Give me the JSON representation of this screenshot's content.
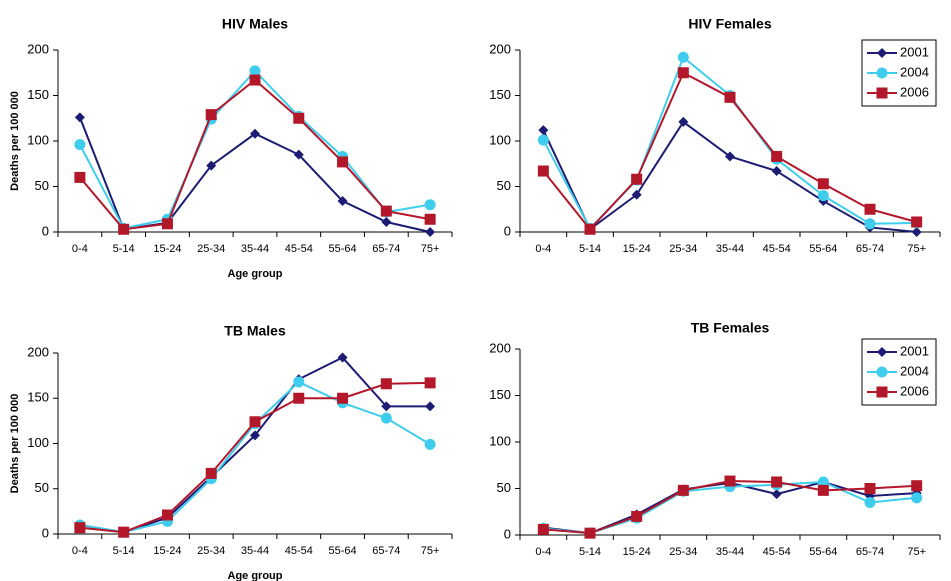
{
  "chart_data": [
    {
      "type": "line",
      "title": "HIV Males",
      "x_label": "Age group",
      "y_label": "Deaths per 100 000",
      "categories": [
        "0-4",
        "5-14",
        "15-24",
        "25-34",
        "35-44",
        "45-54",
        "55-64",
        "65-74",
        "75+"
      ],
      "ylim": [
        0,
        200
      ],
      "yticks": [
        0,
        50,
        100,
        150,
        200
      ],
      "series": [
        {
          "color": "#1c1c74",
          "marker": "diamond",
          "values": [
            126,
            3,
            10,
            73,
            108,
            85,
            34,
            11,
            0
          ]
        },
        {
          "color": "#3fcdee",
          "marker": "circle",
          "values": [
            96,
            4,
            14,
            124,
            177,
            127,
            83,
            22,
            30
          ]
        },
        {
          "color": "#b3172a",
          "marker": "square",
          "values": [
            60,
            3,
            9,
            129,
            167,
            125,
            77,
            23,
            14
          ]
        }
      ]
    },
    {
      "type": "line",
      "title": "HIV Females",
      "legend": "upper right",
      "categories": [
        "0-4",
        "5-14",
        "15-24",
        "25-34",
        "35-44",
        "45-54",
        "55-64",
        "65-74",
        "75+"
      ],
      "ylim": [
        0,
        200
      ],
      "yticks": [
        0,
        50,
        100,
        150,
        200
      ],
      "series": [
        {
          "name": "2001",
          "color": "#1c1c74",
          "marker": "diamond",
          "values": [
            112,
            3,
            41,
            121,
            83,
            67,
            34,
            5,
            0
          ]
        },
        {
          "name": "2004",
          "color": "#3fcdee",
          "marker": "circle",
          "values": [
            101,
            4,
            57,
            192,
            150,
            80,
            40,
            9,
            10
          ]
        },
        {
          "name": "2006",
          "color": "#b3172a",
          "marker": "square",
          "values": [
            67,
            3,
            58,
            175,
            148,
            83,
            53,
            25,
            11
          ]
        }
      ]
    },
    {
      "type": "line",
      "title": "TB Males",
      "x_label": "Age group",
      "y_label": "Deaths per 100 000",
      "categories": [
        "0-4",
        "5-14",
        "15-24",
        "25-34",
        "35-44",
        "45-54",
        "55-64",
        "65-74",
        "75+"
      ],
      "ylim": [
        0,
        200
      ],
      "yticks": [
        0,
        50,
        100,
        150,
        200
      ],
      "series": [
        {
          "color": "#1c1c74",
          "marker": "diamond",
          "values": [
            10,
            2,
            18,
            63,
            109,
            171,
            195,
            141,
            141
          ]
        },
        {
          "color": "#3fcdee",
          "marker": "circle",
          "values": [
            10,
            2,
            14,
            61,
            122,
            168,
            145,
            128,
            99
          ]
        },
        {
          "color": "#b3172a",
          "marker": "square",
          "values": [
            7,
            2,
            21,
            67,
            124,
            150,
            150,
            166,
            167
          ]
        }
      ]
    },
    {
      "type": "line",
      "title": "TB Females",
      "legend": "upper right",
      "categories": [
        "0-4",
        "5-14",
        "15-24",
        "25-34",
        "35-44",
        "45-54",
        "55-64",
        "65-74",
        "75+"
      ],
      "ylim": [
        0,
        200
      ],
      "yticks": [
        0,
        50,
        100,
        150,
        200
      ],
      "series": [
        {
          "name": "2001",
          "color": "#1c1c74",
          "marker": "diamond",
          "values": [
            8,
            2,
            22,
            49,
            56,
            44,
            57,
            42,
            45
          ]
        },
        {
          "name": "2004",
          "color": "#3fcdee",
          "marker": "circle",
          "values": [
            7,
            2,
            18,
            47,
            52,
            54,
            57,
            35,
            40
          ]
        },
        {
          "name": "2006",
          "color": "#b3172a",
          "marker": "square",
          "values": [
            6,
            2,
            20,
            48,
            58,
            57,
            48,
            50,
            53
          ]
        }
      ]
    }
  ]
}
